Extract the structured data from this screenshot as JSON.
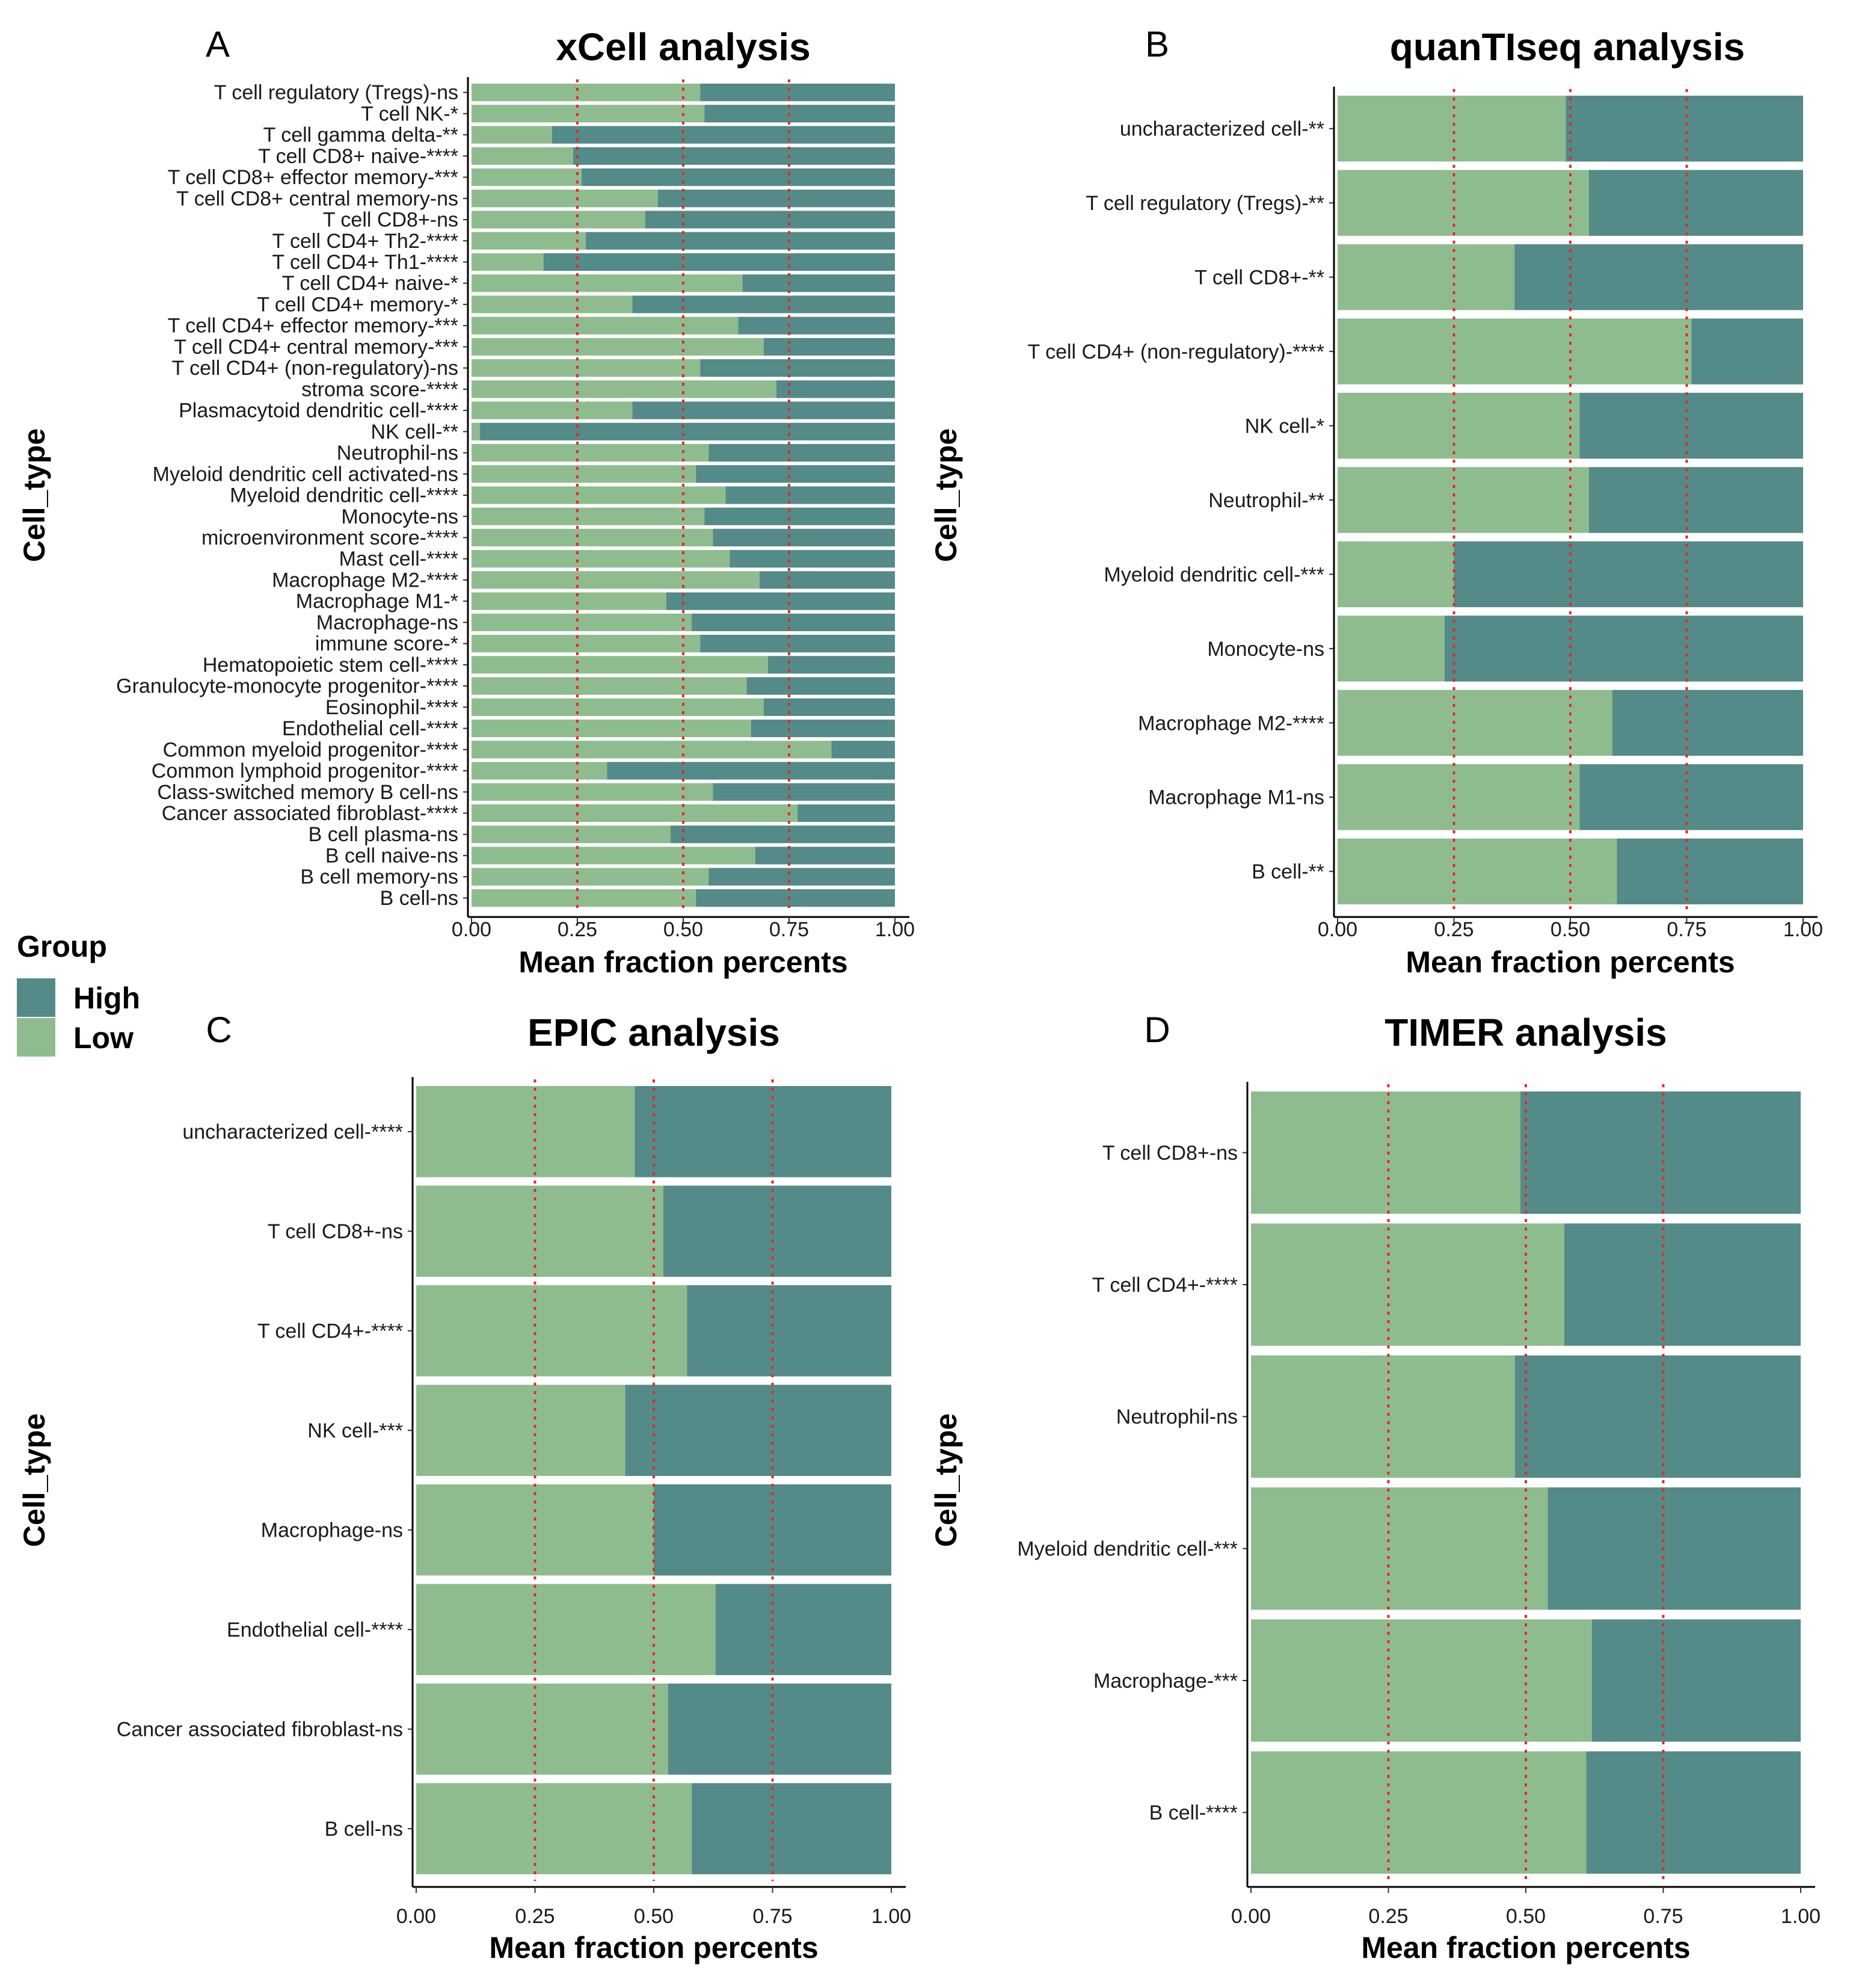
{
  "legend": {
    "title": "Group",
    "items": [
      {
        "label": "High",
        "color": "#548a87"
      },
      {
        "label": "Low",
        "color": "#8fbc8f"
      }
    ]
  },
  "colors": {
    "low": "#8fbc8f",
    "high": "#548a87",
    "ref_line": "#e8262b"
  },
  "chart_data": [
    {
      "type": "bar",
      "panel": "A",
      "title": "xCell analysis",
      "xlabel": "Mean fraction percents",
      "ylabel": "Cell_type",
      "xlim": [
        0,
        1
      ],
      "xticks": [
        "0.00",
        "0.25",
        "0.50",
        "0.75",
        "1.00"
      ],
      "ref_lines": [
        0.25,
        0.5,
        0.75
      ],
      "stacked": true,
      "categories": [
        "T cell regulatory (Tregs)-ns",
        "T cell NK-*",
        "T cell gamma delta-**",
        "T cell CD8+ naive-****",
        "T cell CD8+ effector memory-***",
        "T cell CD8+ central memory-ns",
        "T cell CD8+-ns",
        "T cell CD4+ Th2-****",
        "T cell CD4+ Th1-****",
        "T cell CD4+ naive-*",
        "T cell CD4+ memory-*",
        "T cell CD4+ effector memory-***",
        "T cell CD4+ central memory-***",
        "T cell CD4+ (non-regulatory)-ns",
        "stroma score-****",
        "Plasmacytoid dendritic cell-****",
        "NK cell-**",
        "Neutrophil-ns",
        "Myeloid dendritic cell activated-ns",
        "Myeloid dendritic cell-****",
        "Monocyte-ns",
        "microenvironment score-****",
        "Mast cell-****",
        "Macrophage M2-****",
        "Macrophage M1-*",
        "Macrophage-ns",
        "immune score-*",
        "Hematopoietic stem cell-****",
        "Granulocyte-monocyte progenitor-****",
        "Eosinophil-****",
        "Endothelial cell-****",
        "Common myeloid progenitor-****",
        "Common lymphoid progenitor-****",
        "Class-switched memory B cell-ns",
        "Cancer associated fibroblast-****",
        "B cell plasma-ns",
        "B cell naive-ns",
        "B cell memory-ns",
        "B cell-ns"
      ],
      "series": [
        {
          "name": "Low",
          "values": [
            0.54,
            0.55,
            0.19,
            0.24,
            0.26,
            0.44,
            0.41,
            0.27,
            0.17,
            0.64,
            0.38,
            0.63,
            0.69,
            0.54,
            0.72,
            0.38,
            0.02,
            0.56,
            0.53,
            0.6,
            0.55,
            0.57,
            0.61,
            0.68,
            0.46,
            0.52,
            0.54,
            0.7,
            0.65,
            0.69,
            0.66,
            0.85,
            0.32,
            0.57,
            0.77,
            0.47,
            0.67,
            0.56,
            0.53
          ]
        },
        {
          "name": "High",
          "values": [
            0.46,
            0.45,
            0.81,
            0.76,
            0.74,
            0.56,
            0.59,
            0.73,
            0.83,
            0.36,
            0.62,
            0.37,
            0.31,
            0.46,
            0.28,
            0.62,
            0.98,
            0.44,
            0.47,
            0.4,
            0.45,
            0.43,
            0.39,
            0.32,
            0.54,
            0.48,
            0.46,
            0.3,
            0.35,
            0.31,
            0.34,
            0.15,
            0.68,
            0.43,
            0.23,
            0.53,
            0.33,
            0.44,
            0.47
          ]
        }
      ]
    },
    {
      "type": "bar",
      "panel": "B",
      "title": "quanTIseq analysis",
      "xlabel": "Mean fraction percents",
      "ylabel": "Cell_type",
      "xlim": [
        0,
        1
      ],
      "xticks": [
        "0.00",
        "0.25",
        "0.50",
        "0.75",
        "1.00"
      ],
      "ref_lines": [
        0.25,
        0.5,
        0.75
      ],
      "stacked": true,
      "categories": [
        "uncharacterized cell-**",
        "T cell regulatory (Tregs)-**",
        "T cell CD8+-**",
        "T cell CD4+ (non-regulatory)-****",
        "NK cell-*",
        "Neutrophil-**",
        "Myeloid dendritic cell-***",
        "Monocyte-ns",
        "Macrophage M2-****",
        "Macrophage M1-ns",
        "B cell-**"
      ],
      "series": [
        {
          "name": "Low",
          "values": [
            0.49,
            0.54,
            0.38,
            0.76,
            0.52,
            0.54,
            0.25,
            0.23,
            0.59,
            0.52,
            0.6
          ]
        },
        {
          "name": "High",
          "values": [
            0.51,
            0.46,
            0.62,
            0.24,
            0.48,
            0.46,
            0.75,
            0.77,
            0.41,
            0.48,
            0.4
          ]
        }
      ]
    },
    {
      "type": "bar",
      "panel": "C",
      "title": "EPIC analysis",
      "xlabel": "Mean fraction percents",
      "ylabel": "Cell_type",
      "xlim": [
        0,
        1
      ],
      "xticks": [
        "0.00",
        "0.25",
        "0.50",
        "0.75",
        "1.00"
      ],
      "ref_lines": [
        0.25,
        0.5,
        0.75
      ],
      "stacked": true,
      "categories": [
        "uncharacterized cell-****",
        "T cell CD8+-ns",
        "T cell CD4+-****",
        "NK cell-***",
        "Macrophage-ns",
        "Endothelial cell-****",
        "Cancer associated fibroblast-ns",
        "B cell-ns"
      ],
      "series": [
        {
          "name": "Low",
          "values": [
            0.46,
            0.52,
            0.57,
            0.44,
            0.5,
            0.63,
            0.53,
            0.58
          ]
        },
        {
          "name": "High",
          "values": [
            0.54,
            0.48,
            0.43,
            0.56,
            0.5,
            0.37,
            0.47,
            0.42
          ]
        }
      ]
    },
    {
      "type": "bar",
      "panel": "D",
      "title": "TIMER analysis",
      "xlabel": "Mean fraction percents",
      "ylabel": "Cell_type",
      "xlim": [
        0,
        1
      ],
      "xticks": [
        "0.00",
        "0.25",
        "0.50",
        "0.75",
        "1.00"
      ],
      "ref_lines": [
        0.25,
        0.5,
        0.75
      ],
      "stacked": true,
      "categories": [
        "T cell CD8+-ns",
        "T cell CD4+-****",
        "Neutrophil-ns",
        "Myeloid dendritic cell-***",
        "Macrophage-***",
        "B cell-****"
      ],
      "series": [
        {
          "name": "Low",
          "values": [
            0.49,
            0.57,
            0.48,
            0.54,
            0.62,
            0.61
          ]
        },
        {
          "name": "High",
          "values": [
            0.51,
            0.43,
            0.52,
            0.46,
            0.38,
            0.39
          ]
        }
      ]
    }
  ]
}
